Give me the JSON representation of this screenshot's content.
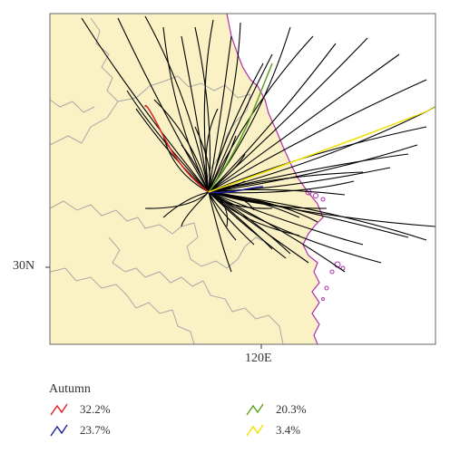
{
  "map": {
    "lat_label": "30N",
    "lon_label": "120E",
    "land_color": "#faf2c4",
    "sea_color": "#ffffff",
    "coast_color": "#b02fb0",
    "border_color": "#a8a8a8",
    "trajectory_color": "#000000"
  },
  "legend": {
    "title": "Autumn",
    "items": [
      {
        "label": "32.2%",
        "color": "#e02020"
      },
      {
        "label": "23.7%",
        "color": "#2020a0"
      },
      {
        "label": "20.3%",
        "color": "#5aa020"
      },
      {
        "label": "3.4%",
        "color": "#f0e000"
      }
    ]
  }
}
